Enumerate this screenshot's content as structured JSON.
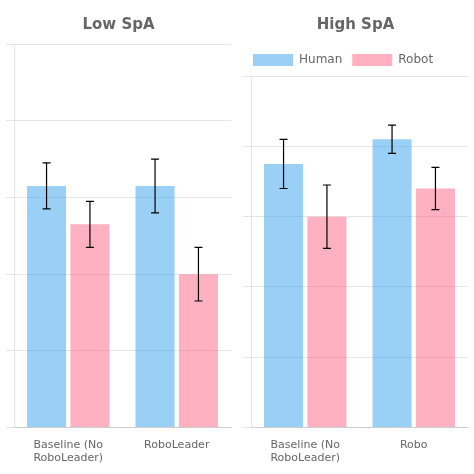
{
  "chart_data": [
    {
      "type": "bar",
      "title": "Low SpA",
      "categories": [
        "Baseline (No\nRoboLeader)",
        "RoboLeader"
      ],
      "series": [
        {
          "name": "Human",
          "values": [
            0.63,
            0.63
          ],
          "errors": [
            0.06,
            0.07
          ]
        },
        {
          "name": "Robot",
          "values": [
            0.53,
            0.4
          ],
          "errors": [
            0.06,
            0.07
          ]
        }
      ],
      "ylim": [
        0.0,
        1.0
      ],
      "yticks": [
        0,
        0.2,
        0.4,
        0.6,
        0.8,
        1.0
      ],
      "grid": true,
      "tick_labels": "x"
    },
    {
      "type": "bar",
      "title": "High SpA",
      "categories": [
        "Baseline (No\nRoboLeader)",
        "Robo"
      ],
      "series": [
        {
          "name": "Human",
          "values": [
            0.75,
            0.82
          ],
          "errors": [
            0.07,
            0.04
          ]
        },
        {
          "name": "Robot",
          "values": [
            0.6,
            0.68
          ],
          "errors": [
            0.09,
            0.06
          ]
        }
      ],
      "ylim": [
        0.0,
        1.0
      ],
      "yticks": [
        0,
        0.2,
        0.4,
        0.6,
        0.8,
        1.0
      ],
      "grid": true,
      "tick_labels": "x",
      "legend": "upper left"
    }
  ]
}
